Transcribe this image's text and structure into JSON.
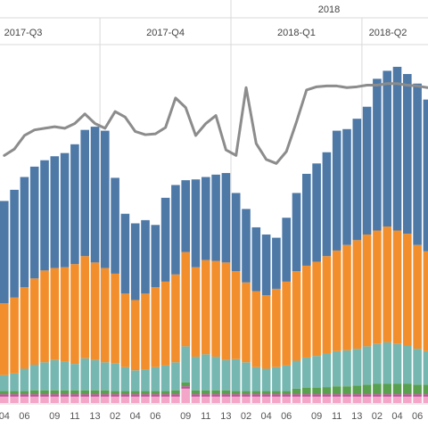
{
  "chart_data": {
    "type": "bar",
    "stacked": true,
    "top_label": "2018",
    "quarters": [
      "2017-Q3",
      "2017-Q4",
      "2018-Q1",
      "2018-Q2"
    ],
    "tick_labels": [
      {
        "label": "04",
        "bar": 0
      },
      {
        "label": "06",
        "bar": 2
      },
      {
        "label": "09",
        "bar": 5
      },
      {
        "label": "11",
        "bar": 7
      },
      {
        "label": "13",
        "bar": 9
      },
      {
        "label": "02",
        "bar": 11
      },
      {
        "label": "04",
        "bar": 13
      },
      {
        "label": "06",
        "bar": 15
      },
      {
        "label": "09",
        "bar": 18
      },
      {
        "label": "11",
        "bar": 20
      },
      {
        "label": "13",
        "bar": 22
      },
      {
        "label": "02",
        "bar": 24
      },
      {
        "label": "04",
        "bar": 26
      },
      {
        "label": "06",
        "bar": 28
      },
      {
        "label": "09",
        "bar": 31
      },
      {
        "label": "11",
        "bar": 33
      },
      {
        "label": "13",
        "bar": 35
      },
      {
        "label": "02",
        "bar": 37
      },
      {
        "label": "04",
        "bar": 39
      },
      {
        "label": "06",
        "bar": 41
      }
    ],
    "quarter_start_bars": [
      0,
      10,
      23,
      36
    ],
    "series_colors": [
      "#f4a6c8",
      "#c44e9f",
      "#59a14f",
      "#76b7b2",
      "#f28e2b",
      "#4e79a7"
    ],
    "line_color": "#8c8c8c",
    "series": [
      {
        "values": [
          8,
          8,
          8,
          8,
          8,
          8,
          8,
          8,
          8,
          8,
          8,
          8,
          8,
          8,
          8,
          8,
          8,
          8,
          18,
          8,
          8,
          8,
          8,
          8,
          8,
          8,
          8,
          8,
          8,
          8,
          8,
          8,
          8,
          8,
          8,
          8,
          8,
          8,
          8,
          8,
          8,
          8,
          8
        ]
      },
      {
        "values": [
          3,
          3,
          3,
          3,
          3,
          3,
          3,
          3,
          3,
          3,
          3,
          3,
          3,
          3,
          3,
          3,
          3,
          3,
          3,
          3,
          3,
          3,
          3,
          3,
          3,
          3,
          3,
          3,
          3,
          3,
          3,
          3,
          3,
          3,
          3,
          3,
          3,
          3,
          3,
          3,
          3,
          3,
          3
        ]
      },
      {
        "values": [
          4,
          4,
          4,
          5,
          5,
          5,
          5,
          5,
          5,
          5,
          5,
          4,
          4,
          4,
          4,
          4,
          4,
          5,
          5,
          5,
          5,
          5,
          5,
          4,
          4,
          4,
          4,
          4,
          4,
          7,
          8,
          8,
          9,
          10,
          10,
          11,
          12,
          13,
          13,
          13,
          13,
          12,
          12
        ]
      },
      {
        "values": [
          20,
          22,
          28,
          32,
          35,
          38,
          36,
          33,
          40,
          38,
          35,
          35,
          30,
          26,
          27,
          30,
          32,
          35,
          45,
          42,
          45,
          42,
          38,
          40,
          36,
          30,
          28,
          30,
          32,
          35,
          38,
          40,
          42,
          44,
          45,
          46,
          48,
          50,
          52,
          50,
          48,
          45,
          42
        ]
      },
      {
        "values": [
          90,
          95,
          102,
          108,
          115,
          115,
          118,
          125,
          128,
          122,
          118,
          112,
          92,
          88,
          95,
          100,
          105,
          110,
          118,
          112,
          118,
          120,
          122,
          110,
          100,
          95,
          92,
          98,
          105,
          112,
          115,
          118,
          122,
          126,
          132,
          136,
          140,
          142,
          145,
          142,
          140,
          130,
          125
        ]
      },
      {
        "values": [
          128,
          135,
          138,
          140,
          138,
          140,
          143,
          150,
          158,
          170,
          172,
          120,
          100,
          96,
          92,
          78,
          105,
          112,
          90,
          110,
          104,
          108,
          112,
          98,
          92,
          80,
          76,
          64,
          80,
          98,
          115,
          123,
          130,
          150,
          145,
          152,
          160,
          190,
          195,
          205,
          200,
          202,
          190
        ]
      }
    ],
    "line_values": [
      310,
      318,
      335,
      342,
      344,
      346,
      344,
      350,
      362,
      350,
      344,
      365,
      358,
      340,
      336,
      337,
      345,
      382,
      370,
      335,
      350,
      360,
      317,
      310,
      395,
      325,
      305,
      300,
      315,
      352,
      392,
      396,
      397,
      397,
      395,
      396,
      398,
      398,
      400,
      400,
      398,
      397,
      395
    ],
    "ylim": [
      0,
      460
    ]
  }
}
